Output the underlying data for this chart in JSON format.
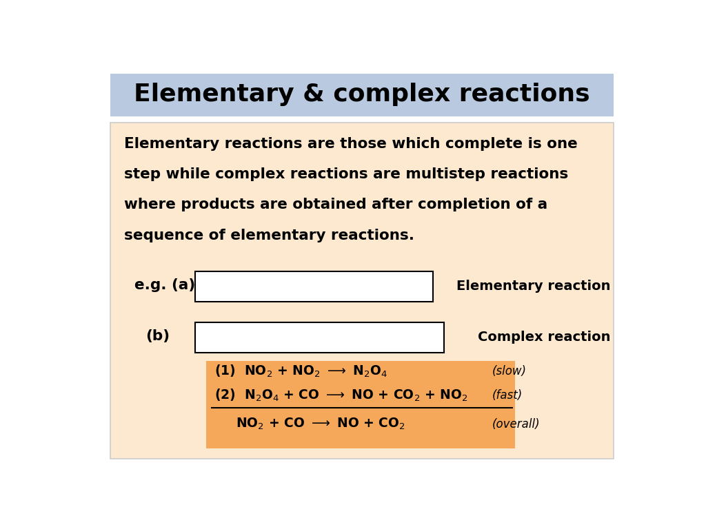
{
  "title": "Elementary & complex reactions",
  "title_bg": "#b8c9e0",
  "slide_bg": "#ffffff",
  "content_bg": "#fde8d0",
  "orange_box_bg": "#f5a85a",
  "text_lines": [
    "Elementary reactions are those which complete is one",
    "step while complex reactions are multistep reactions",
    "where products are obtained after completion of a",
    "sequence of elementary reactions."
  ],
  "eg_a_label": "e.g. (a)",
  "eg_b_label": "(b)",
  "label_elem_reaction": "Elementary reaction",
  "label_complex_reaction": "Complex reaction",
  "eq1": "(1)  NO$_2$ + NO$_2$ $\\longrightarrow$ N$_2$O$_4$",
  "eq1_tag": "(slow)",
  "eq2": "(2)  N$_2$O$_4$ + CO $\\longrightarrow$ NO + CO$_2$ + NO$_2$",
  "eq2_tag": "(fast)",
  "eq3": "NO$_2$ + CO $\\longrightarrow$ NO + CO$_2$",
  "eq3_tag": "(overall)"
}
